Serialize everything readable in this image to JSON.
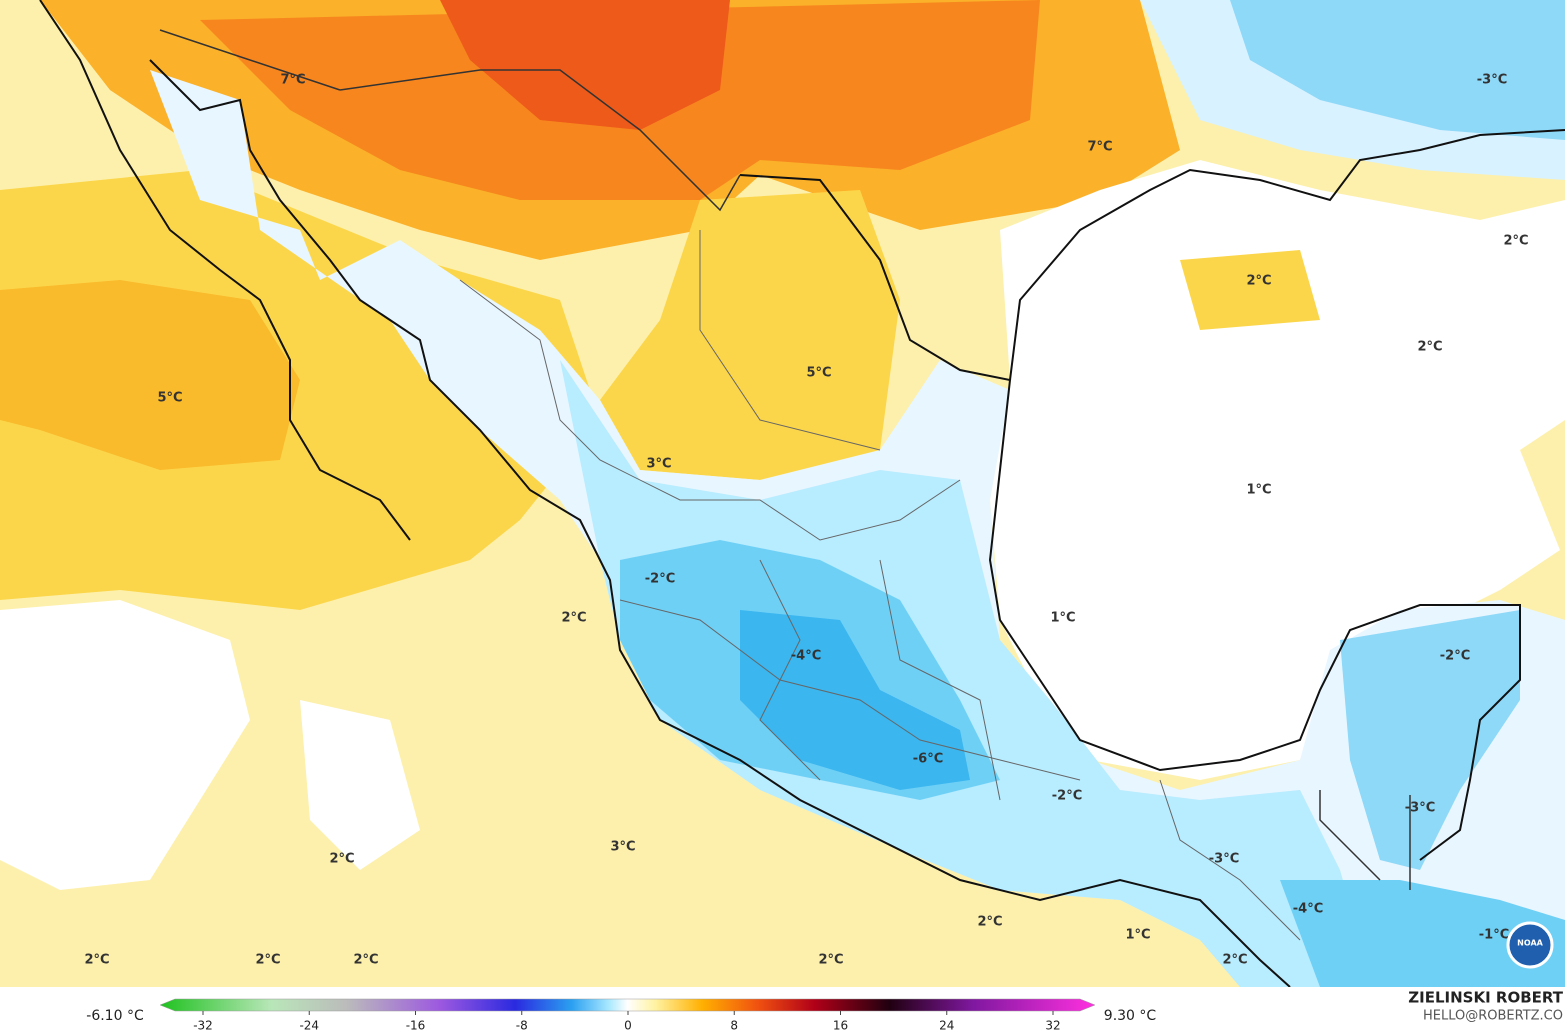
{
  "map": {
    "labels": [
      "7°C",
      "7°C",
      "-3°C",
      "2°C",
      "2°C",
      "2°C",
      "5°C",
      "5°C",
      "3°C",
      "1°C",
      "-2°C",
      "2°C",
      "1°C",
      "-2°C",
      "-4°C",
      "-6°C",
      "-2°C",
      "-3°C",
      "3°C",
      "2°C",
      "-3°C",
      "-4°C",
      "2°C",
      "1°C",
      "-1°C",
      "2°C",
      "2°C",
      "2°C",
      "2°C",
      "2°C"
    ],
    "logo": "NOAA"
  },
  "colorbar": {
    "min_label": "-6.10 °C",
    "max_label": "9.30 °C",
    "ticks": [
      -32,
      -24,
      -16,
      -8,
      0,
      8,
      16,
      24,
      32
    ]
  },
  "credit": {
    "name": "ZIELINSKI ROBERT",
    "contact": "HELLO@ROBERTZ.CO"
  }
}
